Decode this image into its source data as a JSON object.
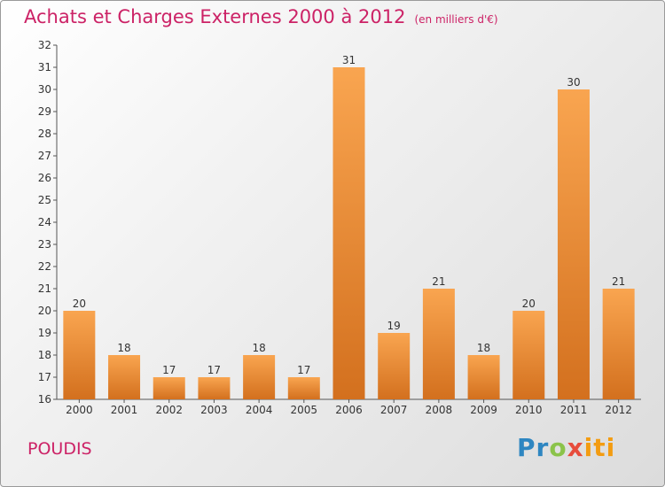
{
  "title": "Achats et Charges Externes 2000 à 2012",
  "unit": "(en milliers d'€)",
  "commune": "POUDIS",
  "logo": {
    "p1": "Pr",
    "p2": "o",
    "p3": "x",
    "p4": "iti"
  },
  "colors": {
    "bar_light": "#f9a550",
    "bar_dark": "#d3701e",
    "title": "#cc2266"
  },
  "chart_data": {
    "type": "bar",
    "categories": [
      "2000",
      "2001",
      "2002",
      "2003",
      "2004",
      "2005",
      "2006",
      "2007",
      "2008",
      "2009",
      "2010",
      "2011",
      "2012"
    ],
    "values": [
      20,
      18,
      17,
      17,
      18,
      17,
      31,
      19,
      21,
      18,
      20,
      30,
      21
    ],
    "ylim": [
      16,
      32
    ],
    "yticks": [
      16,
      17,
      18,
      19,
      20,
      21,
      22,
      23,
      24,
      25,
      26,
      27,
      28,
      29,
      30,
      31,
      32
    ],
    "grid": false,
    "data_labels": true
  }
}
